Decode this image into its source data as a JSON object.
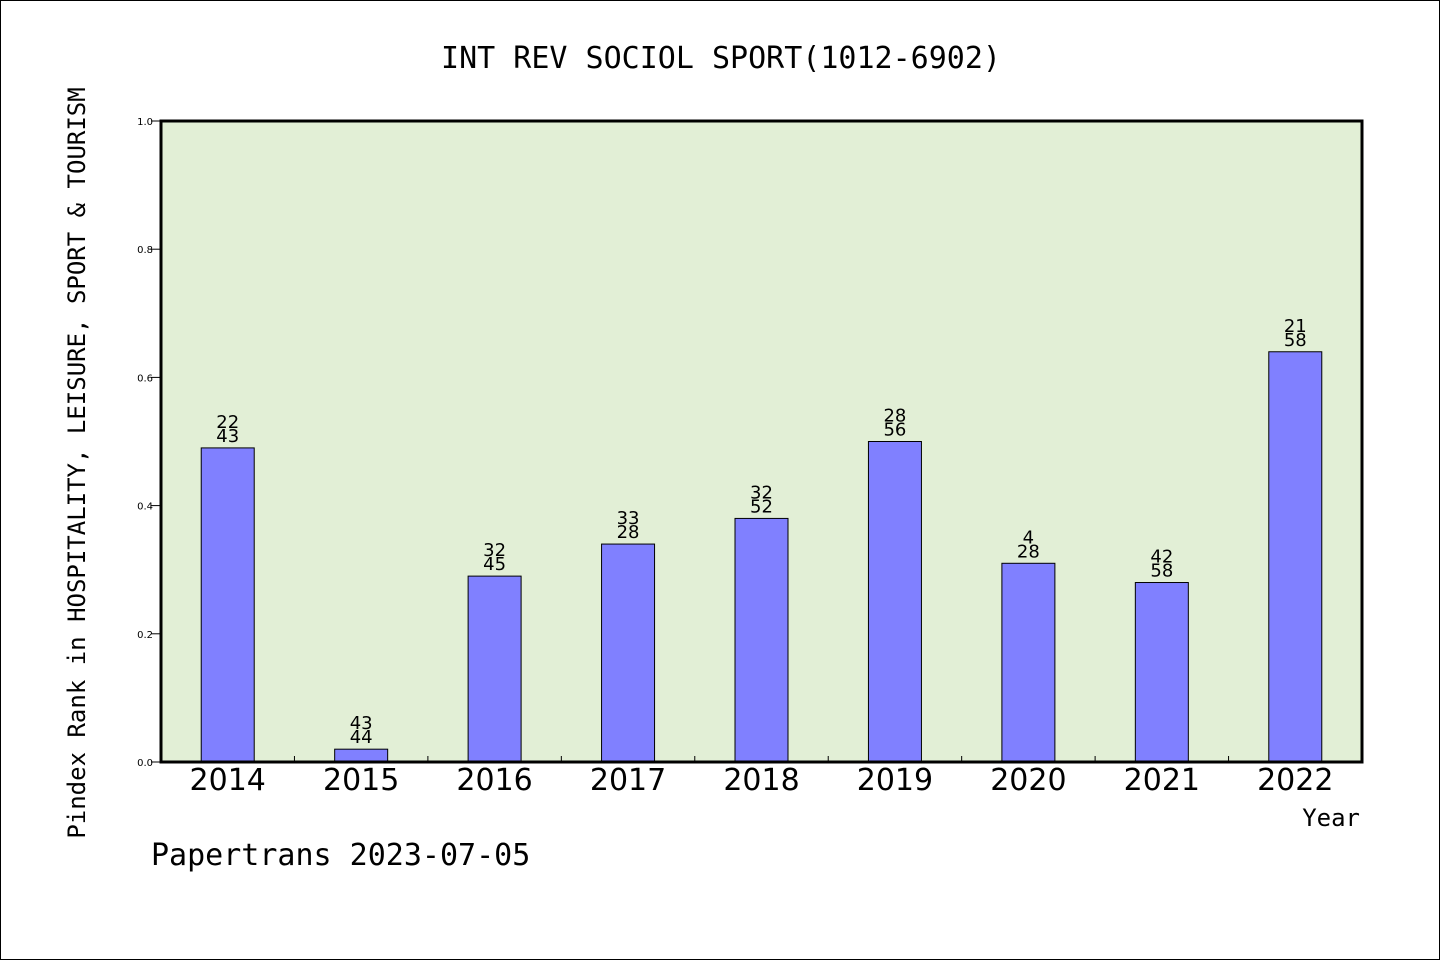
{
  "chart_data": {
    "type": "bar",
    "title": "INT REV SOCIOL SPORT(1012-6902)",
    "xlabel": "Year",
    "ylabel": "Pindex Rank in HOSPITALITY, LEISURE, SPORT & TOURISM",
    "ylim": [
      0,
      1.0
    ],
    "yticks": [
      "0.0",
      "0.2",
      "0.4",
      "0.6",
      "0.8",
      "1.0"
    ],
    "categories": [
      "2014",
      "2015",
      "2016",
      "2017",
      "2018",
      "2019",
      "2020",
      "2021",
      "2022"
    ],
    "values": [
      0.49,
      0.02,
      0.29,
      0.34,
      0.38,
      0.5,
      0.31,
      0.28,
      0.64
    ],
    "label_top": [
      "22",
      "43",
      "32",
      "33",
      "32",
      "28",
      "4",
      "42",
      "21"
    ],
    "label_bottom": [
      "43",
      "44",
      "45",
      "28",
      "52",
      "56",
      "28",
      "58",
      "58"
    ],
    "colors": {
      "plot_background": "#e2efd6",
      "bar_fill": "#8080ff",
      "bar_stroke": "#000000"
    },
    "grid": false,
    "legend": "none"
  },
  "footer": "Papertrans 2023-07-05"
}
